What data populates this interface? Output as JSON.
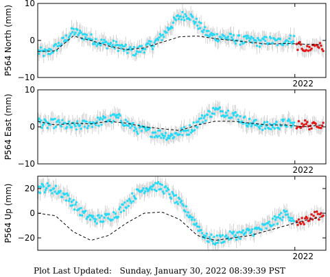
{
  "footer": {
    "label": "Plot Last Updated:",
    "timestamp": "Sunday, January 30, 2022 08:39:39 PST"
  },
  "colors": {
    "data_points": "#29d9f5",
    "recent_points": "#e01818",
    "error_bars": "#c8c8c8",
    "model_line": "#000000"
  },
  "chart_data": [
    {
      "type": "scatter",
      "ylabel": "P564 North (mm)",
      "x_tick_labels": [
        "2022"
      ],
      "y_tick_labels": [
        "10",
        "0",
        "−10"
      ],
      "ylim": [
        -10,
        10
      ],
      "xlim": [
        2019.1,
        2022.35
      ],
      "grid": false,
      "series": [
        {
          "kind": "observations",
          "x": [
            2019.1,
            2019.2,
            2019.3,
            2019.4,
            2019.5,
            2019.6,
            2019.7,
            2019.8,
            2019.9,
            2020.0,
            2020.1,
            2020.2,
            2020.3,
            2020.4,
            2020.5,
            2020.6,
            2020.7,
            2020.8,
            2020.9,
            2021.0,
            2021.1,
            2021.2,
            2021.3,
            2021.4,
            2021.5,
            2021.6,
            2021.7,
            2021.8,
            2021.9,
            2022.0
          ],
          "y": [
            -3.0,
            -3.5,
            -2.0,
            0.0,
            2.5,
            1.5,
            0.5,
            -0.5,
            -1.0,
            -1.5,
            -2.5,
            -3.0,
            -2.0,
            -1.0,
            1.0,
            4.0,
            6.5,
            7.0,
            4.5,
            2.0,
            1.0,
            1.0,
            0.5,
            0.0,
            0.0,
            -0.5,
            0.0,
            -0.5,
            0.0,
            0.5
          ]
        },
        {
          "kind": "recent",
          "x": [
            2022.05,
            2022.1,
            2022.15,
            2022.2,
            2022.25,
            2022.3
          ],
          "y": [
            -1.5,
            -2.0,
            -2.5,
            -1.5,
            -1.0,
            -2.0
          ]
        },
        {
          "kind": "model",
          "x": [
            2019.1,
            2019.3,
            2019.5,
            2019.7,
            2019.9,
            2020.1,
            2020.3,
            2020.5,
            2020.7,
            2020.9,
            2021.1,
            2021.3,
            2021.5,
            2021.7,
            2021.9,
            2022.1,
            2022.3
          ],
          "y": [
            -3.0,
            -2.8,
            1.2,
            0.0,
            -1.5,
            -2.5,
            -2.0,
            -0.5,
            1.0,
            1.2,
            0.5,
            0.0,
            -0.5,
            -1.0,
            -0.8,
            -1.0,
            -1.2
          ]
        }
      ]
    },
    {
      "type": "scatter",
      "ylabel": "P564 East (mm)",
      "x_tick_labels": [
        "2022"
      ],
      "y_tick_labels": [
        "10",
        "0",
        "−10"
      ],
      "ylim": [
        -10,
        10
      ],
      "xlim": [
        2019.1,
        2022.35
      ],
      "grid": false,
      "series": [
        {
          "kind": "observations",
          "x": [
            2019.1,
            2019.2,
            2019.3,
            2019.4,
            2019.5,
            2019.6,
            2019.7,
            2019.8,
            2019.9,
            2020.0,
            2020.1,
            2020.2,
            2020.3,
            2020.4,
            2020.5,
            2020.6,
            2020.7,
            2020.8,
            2020.9,
            2021.0,
            2021.1,
            2021.2,
            2021.3,
            2021.4,
            2021.5,
            2021.6,
            2021.7,
            2021.8,
            2021.9,
            2022.0
          ],
          "y": [
            1.5,
            0.5,
            1.0,
            0.5,
            0.0,
            0.5,
            1.0,
            1.5,
            2.0,
            2.5,
            1.0,
            -0.5,
            -1.0,
            -1.5,
            -2.0,
            -2.5,
            -1.5,
            -1.0,
            1.0,
            3.0,
            4.5,
            4.0,
            3.5,
            2.0,
            1.0,
            0.5,
            0.0,
            0.5,
            1.0,
            0.5
          ]
        },
        {
          "kind": "recent",
          "x": [
            2022.05,
            2022.1,
            2022.15,
            2022.2,
            2022.25,
            2022.3
          ],
          "y": [
            0.5,
            1.0,
            0.5,
            0.0,
            1.0,
            0.5
          ]
        },
        {
          "kind": "model",
          "x": [
            2019.1,
            2019.3,
            2019.5,
            2019.7,
            2019.9,
            2020.1,
            2020.3,
            2020.5,
            2020.7,
            2020.9,
            2021.1,
            2021.3,
            2021.5,
            2021.7,
            2021.9,
            2022.1,
            2022.3
          ],
          "y": [
            1.5,
            0.5,
            1.0,
            0.8,
            1.5,
            1.0,
            0.0,
            -0.5,
            -1.0,
            0.5,
            1.5,
            1.5,
            1.0,
            0.5,
            0.5,
            0.0,
            0.5
          ]
        }
      ]
    },
    {
      "type": "scatter",
      "ylabel": "P564 Up (mm)",
      "x_tick_labels": [
        "2022"
      ],
      "y_tick_labels": [
        "20",
        "0",
        "−20"
      ],
      "ylim": [
        -30,
        30
      ],
      "xlim": [
        2019.1,
        2022.35
      ],
      "grid": false,
      "series": [
        {
          "kind": "observations",
          "x": [
            2019.1,
            2019.2,
            2019.3,
            2019.4,
            2019.5,
            2019.6,
            2019.7,
            2019.8,
            2019.9,
            2020.0,
            2020.1,
            2020.2,
            2020.3,
            2020.4,
            2020.5,
            2020.6,
            2020.7,
            2020.8,
            2020.9,
            2021.0,
            2021.1,
            2021.2,
            2021.3,
            2021.4,
            2021.5,
            2021.6,
            2021.7,
            2021.8,
            2021.9,
            2022.0
          ],
          "y": [
            20.0,
            21.0,
            19.0,
            15.0,
            8.0,
            0.0,
            -4.0,
            -5.0,
            -3.0,
            0.0,
            8.0,
            15.0,
            20.0,
            22.0,
            21.0,
            15.0,
            8.0,
            0.0,
            -10.0,
            -20.0,
            -22.0,
            -20.0,
            -18.0,
            -17.0,
            -15.0,
            -13.0,
            -10.0,
            -5.0,
            0.0,
            -5.0
          ]
        },
        {
          "kind": "recent",
          "x": [
            2022.05,
            2022.1,
            2022.15,
            2022.2,
            2022.25,
            2022.3
          ],
          "y": [
            -8.0,
            -6.0,
            -4.0,
            -2.0,
            -1.0,
            -3.0
          ]
        },
        {
          "kind": "model",
          "x": [
            2019.1,
            2019.3,
            2019.5,
            2019.7,
            2019.9,
            2020.1,
            2020.3,
            2020.5,
            2020.7,
            2020.9,
            2021.1,
            2021.3,
            2021.5,
            2021.7,
            2021.9,
            2022.1,
            2022.3
          ],
          "y": [
            0.0,
            -2.0,
            -15.0,
            -22.0,
            -18.0,
            -8.0,
            0.0,
            1.0,
            -5.0,
            -18.0,
            -22.0,
            -20.0,
            -18.0,
            -14.0,
            -10.0,
            -6.0,
            -3.0
          ]
        }
      ]
    }
  ]
}
